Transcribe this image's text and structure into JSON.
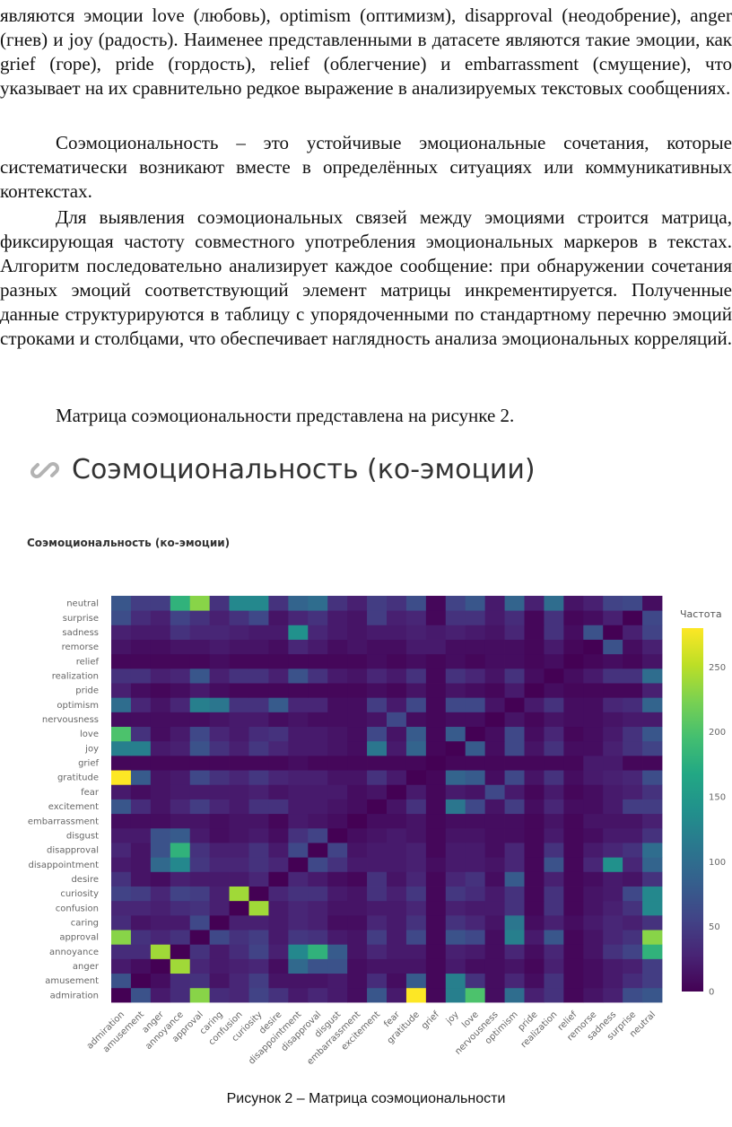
{
  "document": {
    "paragraphs": [
      {
        "text": "являются эмоции love (любовь), optimism (оптимизм), disapproval (неодобрение), anger (гнев) и joy (радость). Наименее представленными в датасете являются такие эмоции, как grief (горе), pride (гордость), relief (облегчение) и embarrassment (смущение), что указывает на их сравнительно редкое выражение в анализируемых текстовых сообщениях."
      },
      {
        "text": "Соэмоциональность – это устойчивые эмоциональные сочетания, которые систематически возникают вместе в определённых ситуациях или коммуникативных контекстах."
      },
      {
        "text": "Для выявления соэмоциональных связей между эмоциями строится матрица, фиксирующая частоту совместного употребления эмоциональных маркеров в текстах. Алгоритм последовательно анализирует каждое сообщение: при обнаружении сочетания разных эмоций соответствующий элемент матрицы инкрементируется. Полученные данные структурируются в таблицу с упорядоченными по стандартному перечню эмоций строками и столбцами, что обеспечивает наглядность анализа эмоциональных корреляций."
      },
      {
        "text": "Матрица соэмоциональности представлена на рисунке 2."
      }
    ],
    "figure_heading": "Соэмоциональность (ко-эмоции)",
    "figure_caption": "Рисунок 2 – Матрица соэмоциональности"
  },
  "icons": {
    "heading_icon": "link-icon",
    "heading_icon_color": "#b3b3b3"
  },
  "chart_data": {
    "type": "heatmap",
    "title": "Соэмоциональность (ко-эмоции)",
    "x_categories": [
      "admiration",
      "amusement",
      "anger",
      "annoyance",
      "approval",
      "caring",
      "confusion",
      "curiosity",
      "desire",
      "disappointment",
      "disapproval",
      "disgust",
      "embarrassment",
      "excitement",
      "fear",
      "gratitude",
      "grief",
      "joy",
      "love",
      "nervousness",
      "optimism",
      "pride",
      "realization",
      "relief",
      "remorse",
      "sadness",
      "surprise",
      "neutral"
    ],
    "y_categories": [
      "admiration",
      "amusement",
      "anger",
      "annoyance",
      "approval",
      "caring",
      "confusion",
      "curiosity",
      "desire",
      "disappointment",
      "disapproval",
      "disgust",
      "embarrassment",
      "excitement",
      "fear",
      "gratitude",
      "grief",
      "joy",
      "love",
      "nervousness",
      "optimism",
      "pride",
      "realization",
      "relief",
      "remorse",
      "sadness",
      "surprise",
      "neutral"
    ],
    "z": [
      [
        0,
        70,
        20,
        35,
        230,
        35,
        30,
        55,
        40,
        20,
        30,
        20,
        10,
        75,
        20,
        280,
        5,
        120,
        200,
        10,
        100,
        25,
        40,
        5,
        15,
        25,
        65,
        75
      ],
      [
        70,
        0,
        10,
        35,
        40,
        15,
        30,
        50,
        15,
        15,
        15,
        20,
        10,
        35,
        10,
        80,
        5,
        120,
        40,
        10,
        30,
        10,
        40,
        5,
        10,
        20,
        35,
        50
      ],
      [
        20,
        10,
        0,
        240,
        30,
        20,
        25,
        30,
        10,
        95,
        70,
        70,
        10,
        15,
        15,
        15,
        5,
        20,
        10,
        10,
        15,
        5,
        25,
        5,
        10,
        20,
        25,
        50
      ],
      [
        35,
        35,
        240,
        0,
        40,
        20,
        35,
        55,
        25,
        130,
        180,
        80,
        15,
        30,
        20,
        20,
        5,
        25,
        20,
        10,
        30,
        10,
        30,
        5,
        15,
        40,
        55,
        180
      ],
      [
        230,
        40,
        30,
        40,
        0,
        60,
        40,
        50,
        20,
        45,
        40,
        20,
        15,
        50,
        20,
        60,
        5,
        70,
        60,
        10,
        120,
        20,
        75,
        5,
        15,
        30,
        40,
        230
      ],
      [
        35,
        15,
        20,
        20,
        60,
        0,
        25,
        25,
        20,
        30,
        25,
        10,
        10,
        30,
        20,
        40,
        5,
        40,
        30,
        15,
        110,
        10,
        25,
        10,
        20,
        30,
        25,
        40
      ],
      [
        30,
        30,
        25,
        35,
        40,
        25,
        0,
        240,
        20,
        30,
        25,
        15,
        15,
        20,
        20,
        30,
        5,
        25,
        20,
        20,
        40,
        5,
        40,
        5,
        15,
        25,
        40,
        130
      ],
      [
        55,
        50,
        30,
        55,
        50,
        25,
        240,
        0,
        30,
        40,
        40,
        20,
        15,
        40,
        25,
        45,
        5,
        45,
        35,
        20,
        40,
        5,
        40,
        5,
        15,
        20,
        60,
        130
      ],
      [
        40,
        15,
        10,
        25,
        20,
        20,
        20,
        30,
        0,
        30,
        20,
        10,
        5,
        40,
        15,
        30,
        5,
        30,
        40,
        10,
        80,
        5,
        25,
        5,
        10,
        20,
        15,
        40
      ],
      [
        20,
        15,
        95,
        130,
        45,
        30,
        30,
        40,
        30,
        0,
        60,
        40,
        20,
        20,
        20,
        25,
        10,
        20,
        20,
        15,
        30,
        5,
        70,
        5,
        30,
        140,
        30,
        90
      ],
      [
        30,
        15,
        70,
        180,
        40,
        25,
        25,
        40,
        20,
        60,
        0,
        55,
        15,
        20,
        20,
        25,
        5,
        20,
        20,
        10,
        30,
        5,
        40,
        5,
        20,
        30,
        40,
        100
      ],
      [
        20,
        20,
        70,
        80,
        20,
        10,
        15,
        20,
        10,
        40,
        55,
        0,
        10,
        15,
        20,
        15,
        5,
        15,
        15,
        10,
        10,
        5,
        20,
        5,
        10,
        20,
        20,
        40
      ],
      [
        10,
        10,
        10,
        15,
        15,
        10,
        15,
        15,
        5,
        20,
        15,
        10,
        0,
        10,
        10,
        15,
        5,
        10,
        10,
        10,
        10,
        5,
        15,
        5,
        15,
        15,
        15,
        25
      ],
      [
        75,
        35,
        15,
        30,
        50,
        30,
        20,
        40,
        40,
        20,
        20,
        15,
        10,
        0,
        15,
        40,
        5,
        110,
        60,
        15,
        50,
        10,
        30,
        10,
        10,
        20,
        50,
        50
      ],
      [
        20,
        10,
        15,
        20,
        20,
        20,
        20,
        25,
        15,
        20,
        20,
        20,
        10,
        15,
        0,
        20,
        5,
        20,
        15,
        60,
        20,
        5,
        20,
        5,
        10,
        20,
        25,
        40
      ],
      [
        280,
        80,
        15,
        20,
        60,
        40,
        30,
        45,
        30,
        25,
        25,
        15,
        15,
        40,
        20,
        0,
        5,
        90,
        80,
        10,
        60,
        15,
        40,
        10,
        20,
        25,
        30,
        65
      ],
      [
        5,
        5,
        5,
        5,
        5,
        5,
        5,
        5,
        5,
        10,
        5,
        5,
        5,
        5,
        5,
        5,
        0,
        5,
        5,
        5,
        5,
        5,
        5,
        5,
        20,
        20,
        5,
        5
      ],
      [
        120,
        120,
        20,
        25,
        70,
        40,
        25,
        45,
        30,
        20,
        20,
        15,
        10,
        110,
        20,
        90,
        5,
        0,
        80,
        10,
        60,
        15,
        40,
        10,
        10,
        25,
        40,
        55
      ],
      [
        200,
        40,
        10,
        20,
        60,
        30,
        20,
        35,
        40,
        20,
        20,
        15,
        10,
        60,
        15,
        80,
        5,
        80,
        0,
        10,
        60,
        10,
        30,
        5,
        10,
        20,
        40,
        75
      ],
      [
        10,
        10,
        10,
        10,
        10,
        15,
        20,
        20,
        10,
        15,
        10,
        10,
        10,
        15,
        60,
        10,
        5,
        10,
        10,
        0,
        15,
        5,
        15,
        10,
        10,
        15,
        20,
        20
      ],
      [
        100,
        30,
        15,
        30,
        120,
        110,
        40,
        40,
        80,
        30,
        30,
        10,
        10,
        50,
        20,
        60,
        5,
        60,
        60,
        15,
        0,
        20,
        40,
        10,
        10,
        30,
        35,
        90
      ],
      [
        25,
        10,
        5,
        10,
        20,
        10,
        5,
        5,
        5,
        5,
        5,
        5,
        5,
        10,
        5,
        15,
        5,
        15,
        10,
        5,
        20,
        0,
        10,
        5,
        5,
        5,
        5,
        25
      ],
      [
        40,
        40,
        25,
        30,
        75,
        25,
        40,
        40,
        25,
        70,
        40,
        20,
        15,
        30,
        20,
        40,
        5,
        40,
        30,
        15,
        40,
        10,
        0,
        10,
        20,
        40,
        40,
        100
      ],
      [
        5,
        5,
        5,
        5,
        5,
        10,
        5,
        5,
        5,
        5,
        5,
        5,
        5,
        10,
        5,
        10,
        5,
        10,
        5,
        10,
        10,
        5,
        10,
        0,
        5,
        10,
        5,
        15
      ],
      [
        15,
        10,
        10,
        15,
        15,
        20,
        15,
        15,
        10,
        30,
        20,
        10,
        15,
        10,
        10,
        20,
        20,
        10,
        10,
        10,
        10,
        5,
        20,
        5,
        0,
        70,
        10,
        25
      ],
      [
        25,
        20,
        20,
        40,
        30,
        30,
        25,
        20,
        20,
        140,
        30,
        20,
        15,
        20,
        20,
        25,
        20,
        25,
        20,
        15,
        30,
        5,
        40,
        10,
        70,
        0,
        25,
        55
      ],
      [
        65,
        35,
        25,
        55,
        40,
        25,
        40,
        60,
        15,
        30,
        40,
        20,
        15,
        50,
        25,
        30,
        5,
        40,
        40,
        20,
        35,
        5,
        40,
        5,
        10,
        25,
        0,
        60
      ],
      [
        75,
        50,
        50,
        180,
        230,
        40,
        130,
        130,
        40,
        90,
        100,
        40,
        25,
        50,
        40,
        65,
        5,
        55,
        75,
        20,
        90,
        25,
        100,
        15,
        25,
        55,
        60,
        10
      ]
    ],
    "colorbar": {
      "title": "Частота",
      "ticks": [
        0,
        50,
        100,
        150,
        200,
        250
      ],
      "range": [
        0,
        280
      ],
      "colorscale": "viridis"
    }
  }
}
